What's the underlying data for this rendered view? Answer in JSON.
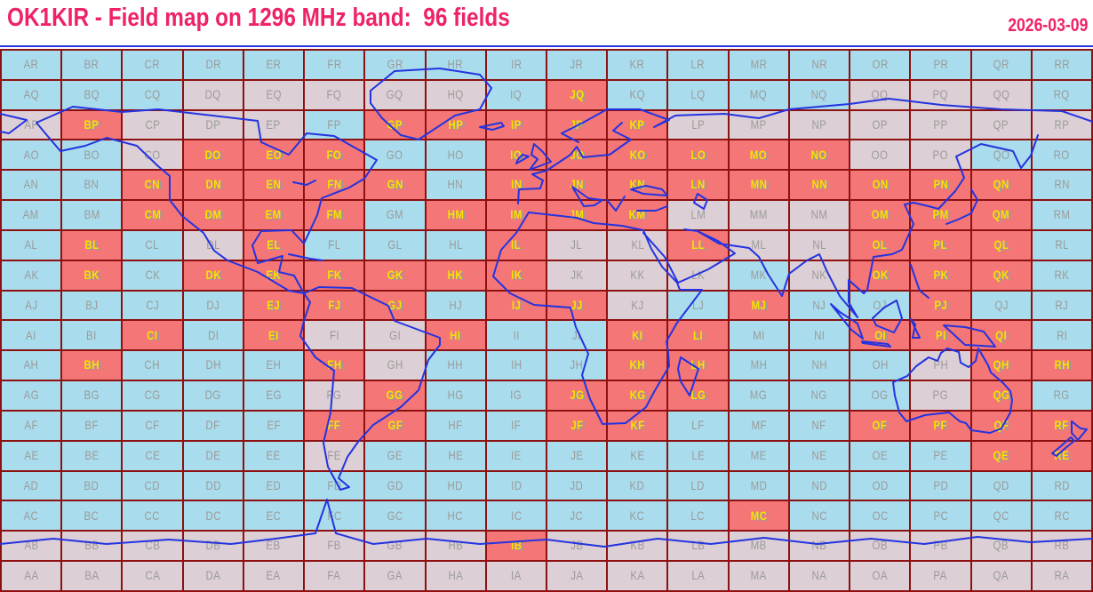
{
  "header": {
    "title": "OK1KIR - Field map on 1296 MHz band:  96 fields",
    "date": "2026-03-09",
    "callsign": "OK1KIR",
    "band": "1296 MHz",
    "fields_count": 96
  },
  "colors": {
    "worked": "#f57676",
    "water": "#a9dcec",
    "land": "#dccfd5",
    "grid_line": "#8e1111",
    "coastline": "#2433e0",
    "label": "#9b9b9b",
    "worked_label": "#ffdf00",
    "title": "#ee2366"
  },
  "grid": {
    "column_letters": [
      "A",
      "B",
      "C",
      "D",
      "E",
      "F",
      "G",
      "H",
      "I",
      "J",
      "K",
      "L",
      "M",
      "N",
      "O",
      "P",
      "Q",
      "R"
    ],
    "row_letters_top_to_bottom": [
      "R",
      "Q",
      "P",
      "O",
      "N",
      "M",
      "L",
      "K",
      "J",
      "I",
      "H",
      "G",
      "F",
      "E",
      "D",
      "C",
      "B",
      "A"
    ],
    "worked_fields": [
      "JQ",
      "BP",
      "GP",
      "HP",
      "IP",
      "JP",
      "KP",
      "DO",
      "EO",
      "FO",
      "IO",
      "JO",
      "KO",
      "LO",
      "MO",
      "NO",
      "CN",
      "DN",
      "EN",
      "FN",
      "GN",
      "IN",
      "JN",
      "KN",
      "LN",
      "MN",
      "NN",
      "ON",
      "PN",
      "QN",
      "CM",
      "DM",
      "EM",
      "FM",
      "HM",
      "IM",
      "JM",
      "KM",
      "OM",
      "PM",
      "QM",
      "BL",
      "EL",
      "IL",
      "LL",
      "OL",
      "PL",
      "QL",
      "BK",
      "DK",
      "EK",
      "FK",
      "GK",
      "HK",
      "IK",
      "OK",
      "PK",
      "QK",
      "EJ",
      "FJ",
      "GJ",
      "IJ",
      "JJ",
      "MJ",
      "PJ",
      "CI",
      "EI",
      "HI",
      "KI",
      "LI",
      "OI",
      "PI",
      "QI",
      "BH",
      "FH",
      "KH",
      "LH",
      "QH",
      "RH",
      "GG",
      "JG",
      "KG",
      "LG",
      "QG",
      "FF",
      "GF",
      "JF",
      "KF",
      "OF",
      "PF",
      "QF",
      "RF",
      "QE",
      "RE",
      "MC",
      "IB"
    ],
    "land_fields": [
      "DQ",
      "EQ",
      "FQ",
      "GQ",
      "HQ",
      "OQ",
      "PQ",
      "QQ",
      "AP",
      "CP",
      "DP",
      "EP",
      "LP",
      "MP",
      "NP",
      "OP",
      "PP",
      "QP",
      "RP",
      "CO",
      "OO",
      "PO",
      "LM",
      "MM",
      "NM",
      "DL",
      "JL",
      "KL",
      "ML",
      "NL",
      "JK",
      "KK",
      "LK",
      "NK",
      "KJ",
      "FI",
      "GI",
      "GH",
      "PH",
      "FG",
      "PG",
      "FE",
      "AB",
      "BB",
      "CB",
      "DB",
      "EB",
      "FB",
      "GB",
      "HB",
      "JB",
      "KB",
      "LB",
      "MB",
      "NB",
      "OB",
      "PB",
      "QB",
      "RB",
      "AA",
      "BA",
      "CA",
      "DA",
      "EA",
      "FA",
      "GA",
      "HA",
      "IA",
      "JA",
      "KA",
      "LA",
      "MA",
      "NA",
      "OA",
      "PA",
      "QA",
      "RA"
    ],
    "worked_count": 96
  }
}
